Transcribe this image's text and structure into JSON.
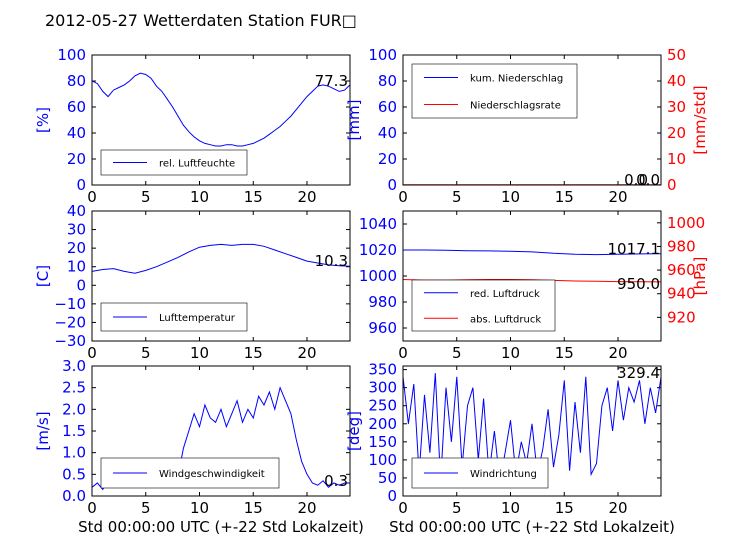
{
  "title": "2012-05-27 Wetterdaten Station FUR□",
  "colors": {
    "blue": "#0000ff",
    "red": "#ff0000",
    "black": "#000000"
  },
  "chart_data": [
    {
      "id": "humidity",
      "type": "line",
      "xlim": [
        0,
        24
      ],
      "ylim": [
        0,
        100
      ],
      "xticks": [
        "0",
        "5",
        "10",
        "15",
        "20"
      ],
      "yticks": [
        "0",
        "20",
        "40",
        "60",
        "80",
        "100"
      ],
      "ylabel": "[%]",
      "xlabel": "",
      "annotations": [
        "77.3"
      ],
      "legend_position": "lower-left",
      "series": [
        {
          "name": "rel. Luftfeuchte",
          "color": "#0000ff",
          "x": [
            0,
            0.5,
            1,
            1.5,
            2,
            2.5,
            3,
            3.5,
            4,
            4.5,
            5,
            5.5,
            6,
            6.5,
            7,
            7.5,
            8,
            8.5,
            9,
            9.5,
            10,
            10.5,
            11,
            11.5,
            12,
            12.5,
            13,
            13.5,
            14,
            14.5,
            15,
            15.5,
            16,
            16.5,
            17,
            17.5,
            18,
            18.5,
            19,
            19.5,
            20,
            20.5,
            21,
            21.5,
            22,
            22.5,
            23,
            23.5,
            24
          ],
          "y": [
            80,
            78,
            72,
            68,
            73,
            75,
            77,
            80,
            84,
            86,
            85,
            82,
            76,
            72,
            66,
            60,
            53,
            46,
            41,
            37,
            34,
            32,
            31,
            30,
            30,
            31,
            31,
            30,
            30,
            31,
            32,
            34,
            36,
            39,
            42,
            45,
            49,
            53,
            58,
            63,
            68,
            72,
            76,
            77,
            76,
            74,
            72,
            73,
            77
          ]
        }
      ]
    },
    {
      "id": "precip",
      "type": "line",
      "xlim": [
        0,
        24
      ],
      "ylim": [
        0,
        100
      ],
      "y2lim": [
        0,
        50
      ],
      "xticks": [
        "0",
        "5",
        "10",
        "15",
        "20"
      ],
      "yticks": [
        "0",
        "20",
        "40",
        "60",
        "80",
        "100"
      ],
      "y2ticks": [
        "0",
        "10",
        "20",
        "30",
        "40",
        "50"
      ],
      "ylabel": "[mm]",
      "y2label": "[mm/std]",
      "xlabel": "",
      "annotations": [
        "0.0",
        "0.0"
      ],
      "legend_position": "upper-left",
      "series": [
        {
          "name": "kum. Niederschlag",
          "color": "#0000ff",
          "axis": "left",
          "x": [
            0,
            24
          ],
          "y": [
            0,
            0
          ]
        },
        {
          "name": "Niederschlagsrate",
          "color": "#ff0000",
          "axis": "right",
          "x": [
            0,
            24
          ],
          "y": [
            0.1,
            0.1
          ]
        }
      ]
    },
    {
      "id": "temperature",
      "type": "line",
      "xlim": [
        0,
        24
      ],
      "ylim": [
        -30,
        40
      ],
      "xticks": [
        "0",
        "5",
        "10",
        "15",
        "20"
      ],
      "yticks": [
        "−30",
        "−20",
        "−10",
        "0",
        "10",
        "20",
        "30",
        "40"
      ],
      "ylabel": "[C]",
      "xlabel": "",
      "annotations": [
        "10.3"
      ],
      "legend_position": "lower-left",
      "series": [
        {
          "name": "Lufttemperatur",
          "color": "#0000ff",
          "x": [
            0,
            1,
            2,
            3,
            4,
            5,
            6,
            7,
            8,
            9,
            10,
            11,
            12,
            13,
            14,
            15,
            16,
            17,
            18,
            19,
            20,
            21,
            22,
            23,
            24
          ],
          "y": [
            7.5,
            8.5,
            9,
            7.5,
            6.5,
            8,
            10,
            12.5,
            15,
            18,
            20.5,
            21.5,
            22,
            21.5,
            22,
            22,
            21,
            19,
            17,
            15,
            13,
            12,
            11,
            10.5,
            10.3
          ]
        }
      ]
    },
    {
      "id": "pressure",
      "type": "line",
      "xlim": [
        0,
        24
      ],
      "ylim": [
        950,
        1050
      ],
      "y2lim": [
        900,
        1010
      ],
      "xticks": [
        "0",
        "5",
        "10",
        "15",
        "20"
      ],
      "yticks": [
        "960",
        "980",
        "1000",
        "1020",
        "1040"
      ],
      "y2ticks": [
        "920",
        "940",
        "960",
        "980",
        "1000"
      ],
      "ylabel": "",
      "y2label": "[hPa]",
      "xlabel": "",
      "annotations": [
        "1017.1",
        "950.0"
      ],
      "legend_position": "lower-left",
      "series": [
        {
          "name": "red. Luftdruck",
          "color": "#0000ff",
          "axis": "left",
          "x": [
            0,
            2,
            4,
            6,
            8,
            10,
            12,
            14,
            16,
            18,
            20,
            22,
            24
          ],
          "y": [
            1020,
            1020,
            1019.8,
            1019.5,
            1019.3,
            1019,
            1018.5,
            1017.5,
            1016.8,
            1016.5,
            1016.8,
            1017,
            1017.1
          ]
        },
        {
          "name": "abs. Luftdruck",
          "color": "#ff0000",
          "axis": "right",
          "x": [
            0,
            2,
            4,
            6,
            8,
            10,
            12,
            14,
            16,
            18,
            20,
            22,
            24
          ],
          "y": [
            952,
            951.5,
            951.5,
            951.8,
            952,
            952,
            951.8,
            951.3,
            950.8,
            950.5,
            950.3,
            950.1,
            950
          ]
        }
      ]
    },
    {
      "id": "wind-speed",
      "type": "line",
      "xlim": [
        0,
        24
      ],
      "ylim": [
        0,
        3
      ],
      "xticks": [
        "0",
        "5",
        "10",
        "15",
        "20"
      ],
      "yticks": [
        "0.0",
        "0.5",
        "1.0",
        "1.5",
        "2.0",
        "2.5",
        "3.0"
      ],
      "ylabel": "[m/s]",
      "xlabel": "Std 00:00:00 UTC (+-22 Std Lokalzeit)",
      "annotations": [
        "0.3"
      ],
      "legend_position": "lower-left",
      "series": [
        {
          "name": "Windgeschwindigkeit",
          "color": "#0000ff",
          "x": [
            0,
            0.5,
            1,
            1.5,
            2,
            2.5,
            3,
            3.5,
            4,
            4.5,
            5,
            5.5,
            6,
            6.5,
            7,
            7.5,
            8,
            8.5,
            9,
            9.5,
            10,
            10.5,
            11,
            11.5,
            12,
            12.5,
            13,
            13.5,
            14,
            14.5,
            15,
            15.5,
            16,
            16.5,
            17,
            17.5,
            18,
            18.5,
            19,
            19.5,
            20,
            20.5,
            21,
            21.5,
            22,
            22.5,
            23,
            23.5,
            24
          ],
          "y": [
            0.2,
            0.3,
            0.15,
            0.4,
            0.2,
            0.5,
            0.25,
            0.6,
            0.3,
            0.45,
            0.2,
            0.55,
            0.3,
            0.4,
            0.25,
            0.5,
            0.45,
            1.1,
            1.5,
            1.9,
            1.6,
            2.1,
            1.8,
            1.7,
            2.0,
            1.6,
            1.9,
            2.2,
            1.7,
            2.0,
            1.8,
            2.3,
            2.1,
            2.4,
            2.0,
            2.5,
            2.2,
            1.9,
            1.3,
            0.8,
            0.5,
            0.3,
            0.25,
            0.35,
            0.2,
            0.3,
            0.25,
            0.3,
            0.3
          ]
        }
      ]
    },
    {
      "id": "wind-direction",
      "type": "line",
      "xlim": [
        0,
        24
      ],
      "ylim": [
        0,
        360
      ],
      "xticks": [
        "0",
        "5",
        "10",
        "15",
        "20"
      ],
      "yticks": [
        "0",
        "50",
        "100",
        "150",
        "200",
        "250",
        "300",
        "350"
      ],
      "ylabel": "[deg]",
      "xlabel": "Std 00:00:00 UTC (+-22 Std Lokalzeit)",
      "annotations": [
        "329.4"
      ],
      "legend_position": "lower-left",
      "series": [
        {
          "name": "Windrichtung",
          "color": "#0000ff",
          "x": [
            0,
            0.5,
            1,
            1.5,
            2,
            2.5,
            3,
            3.5,
            4,
            4.5,
            5,
            5.5,
            6,
            6.5,
            7,
            7.5,
            8,
            8.5,
            9,
            9.5,
            10,
            10.5,
            11,
            11.5,
            12,
            12.5,
            13,
            13.5,
            14,
            14.5,
            15,
            15.5,
            16,
            16.5,
            17,
            17.5,
            18,
            18.5,
            19,
            19.5,
            20,
            20.5,
            21,
            21.5,
            22,
            22.5,
            23,
            23.5,
            24
          ],
          "y": [
            330,
            200,
            310,
            60,
            280,
            120,
            340,
            40,
            300,
            150,
            330,
            80,
            250,
            300,
            100,
            270,
            60,
            180,
            40,
            120,
            210,
            60,
            150,
            90,
            200,
            60,
            130,
            240,
            80,
            170,
            320,
            70,
            260,
            120,
            330,
            60,
            90,
            250,
            300,
            180,
            320,
            210,
            300,
            260,
            320,
            200,
            300,
            230,
            329
          ]
        }
      ]
    }
  ]
}
